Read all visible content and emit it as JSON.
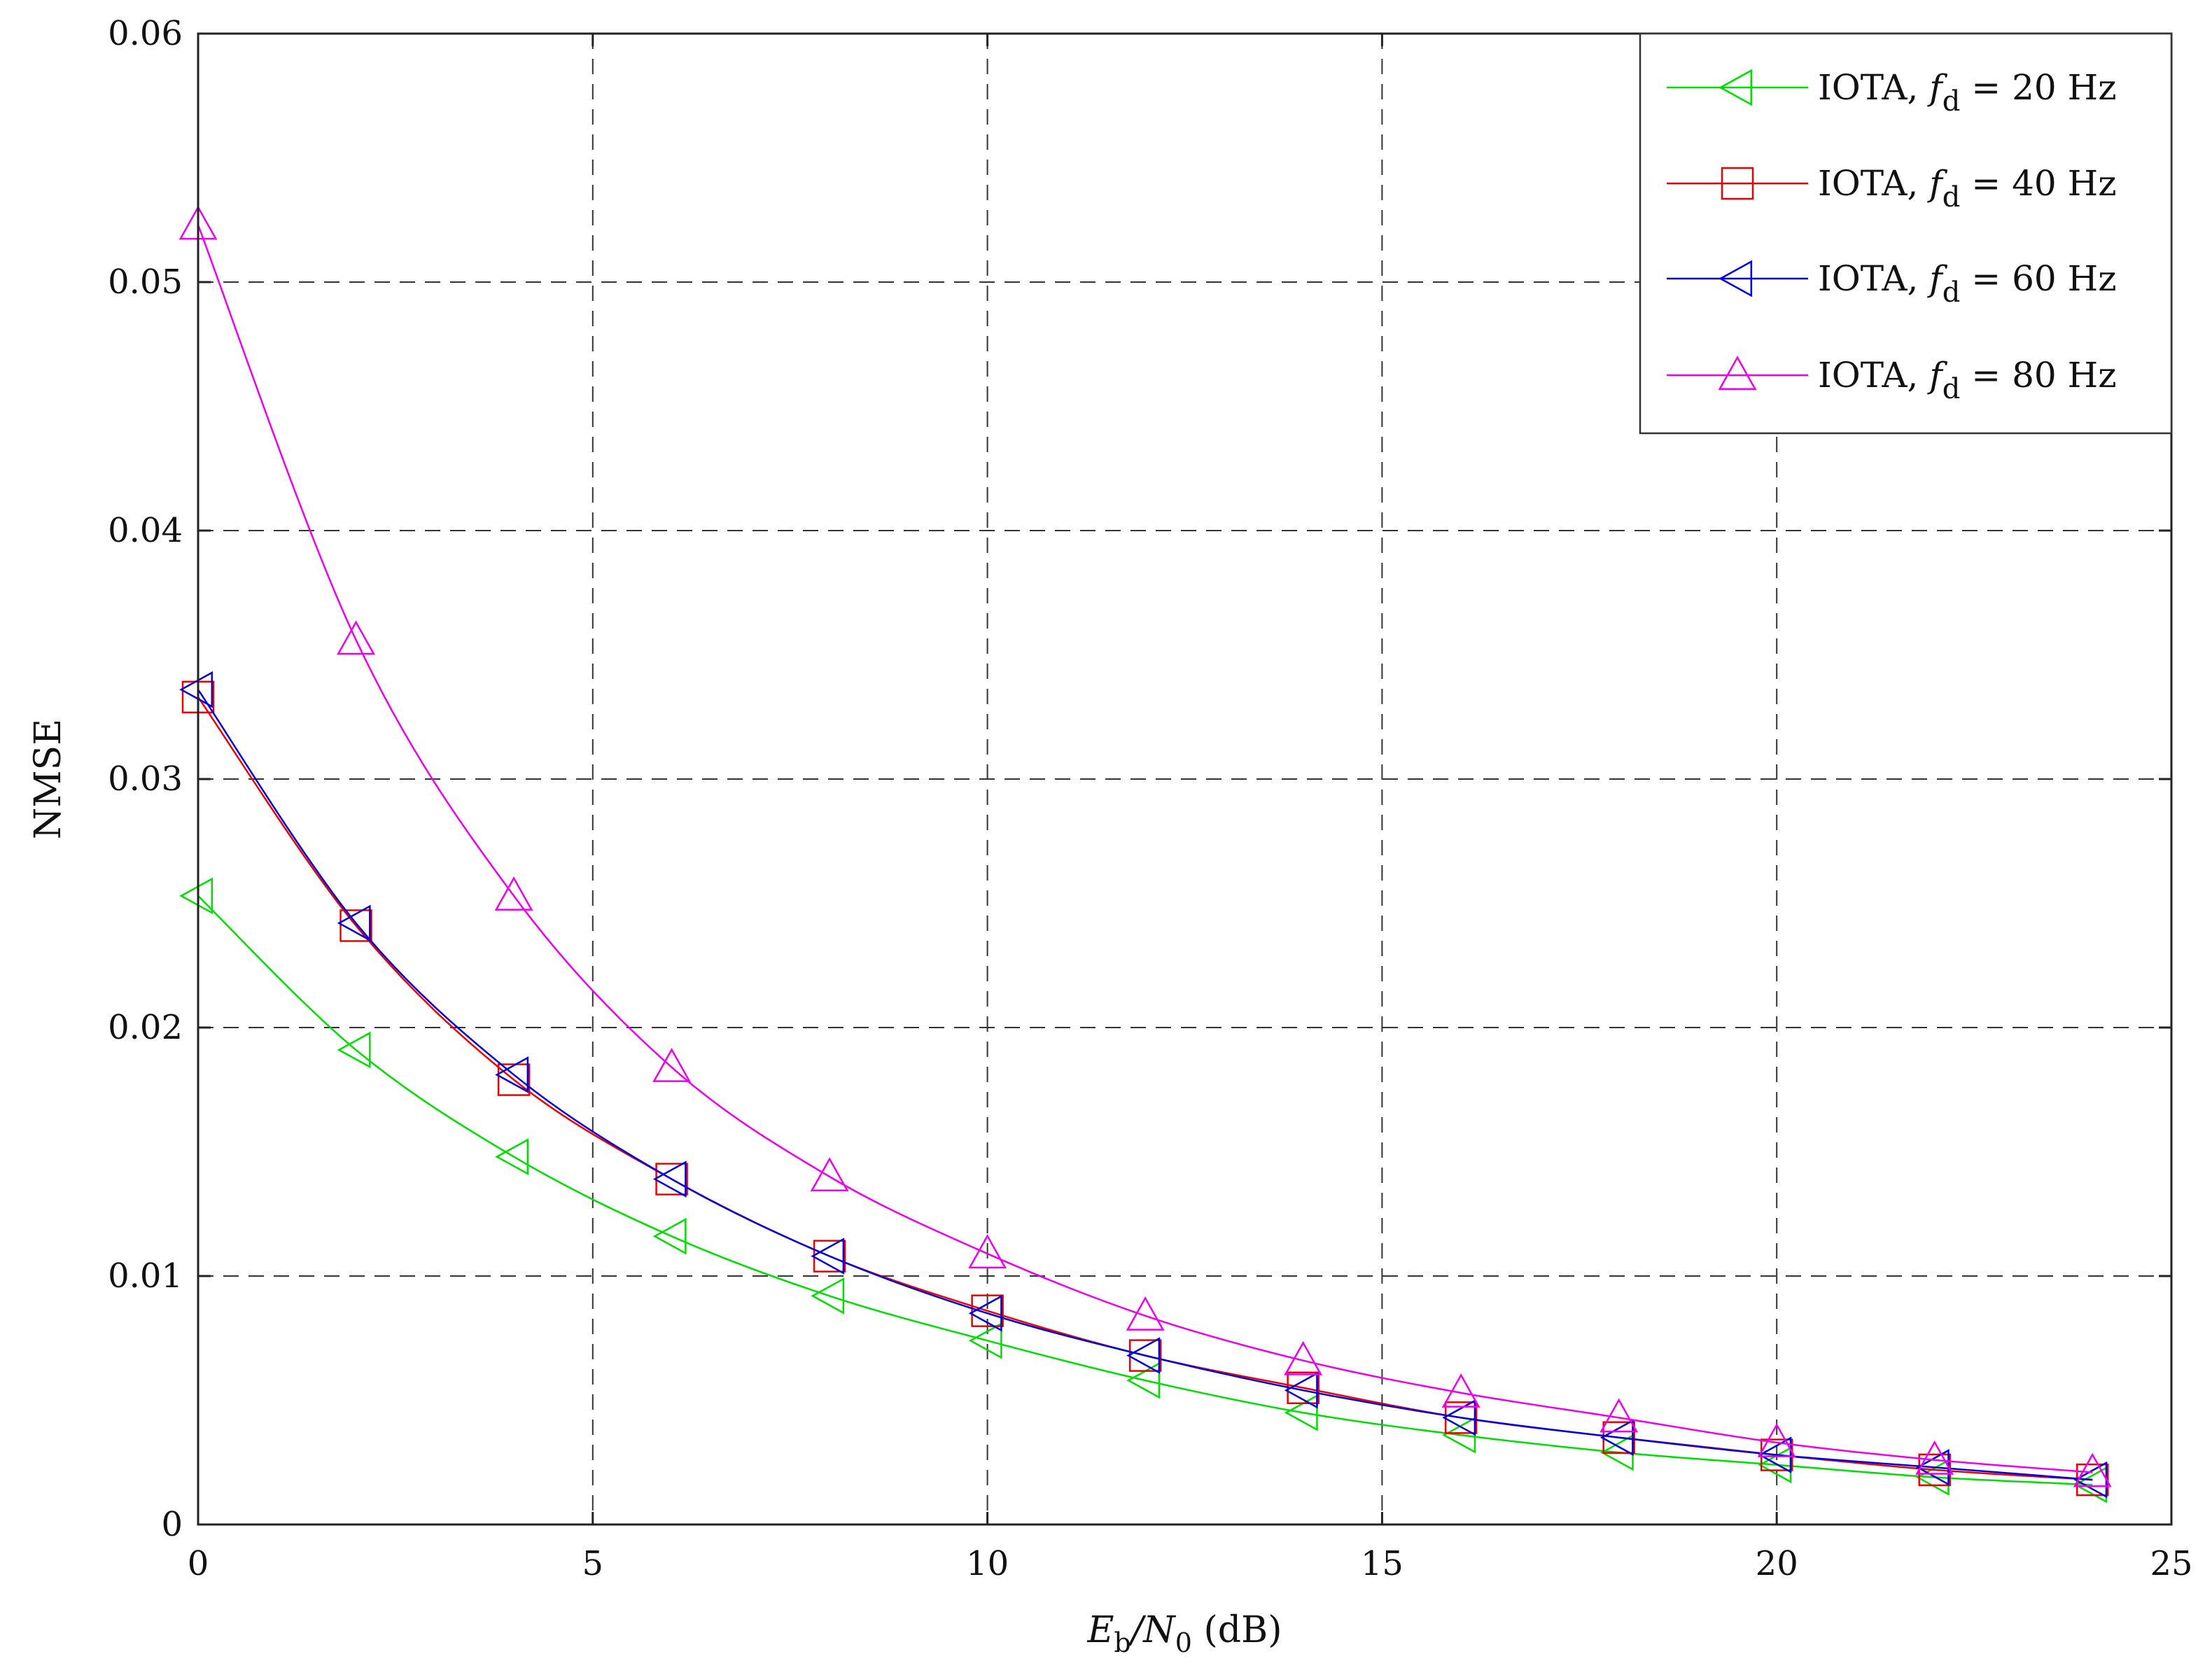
{
  "chart_data": {
    "type": "line",
    "title": "",
    "xlabel": {
      "main": "E",
      "sub1": "b",
      "mid": "/N",
      "sub2": "0",
      "tail": " (dB)"
    },
    "ylabel": "NMSE",
    "xlim": [
      0,
      25
    ],
    "ylim": [
      0,
      0.06
    ],
    "xticks": [
      0,
      5,
      10,
      15,
      20,
      25
    ],
    "xtick_labels": [
      "0",
      "5",
      "10",
      "15",
      "20",
      "25"
    ],
    "yticks": [
      0,
      0.01,
      0.02,
      0.03,
      0.04,
      0.05,
      0.06
    ],
    "ytick_labels": [
      "0",
      "0.01",
      "0.02",
      "0.03",
      "0.04",
      "0.05",
      "0.06"
    ],
    "grid": true,
    "legend_position": "top-right",
    "x": [
      0,
      2,
      4,
      6,
      8,
      10,
      12,
      14,
      16,
      18,
      20,
      22,
      24
    ],
    "series": [
      {
        "name": "IOTA, f_d = 20 Hz",
        "legend": {
          "prefix": "IOTA, ",
          "symbol": "f",
          "sub": "d",
          "suffix": " = 20 Hz"
        },
        "color": "#00dd00",
        "marker": "triangle-left",
        "values": [
          0.0253,
          0.0191,
          0.0148,
          0.0116,
          0.0092,
          0.0074,
          0.0058,
          0.0045,
          0.0036,
          0.0029,
          0.0024,
          0.0019,
          0.0016
        ]
      },
      {
        "name": "IOTA, f_d = 40 Hz",
        "legend": {
          "prefix": "IOTA, ",
          "symbol": "f",
          "sub": "d",
          "suffix": " = 40 Hz"
        },
        "color": "#ee0000",
        "marker": "square",
        "values": [
          0.0333,
          0.0241,
          0.0179,
          0.0139,
          0.0108,
          0.0086,
          0.0068,
          0.0055,
          0.0043,
          0.0035,
          0.0028,
          0.0022,
          0.0018
        ]
      },
      {
        "name": "IOTA, f_d = 60 Hz",
        "legend": {
          "prefix": "IOTA, ",
          "symbol": "f",
          "sub": "d",
          "suffix": " = 60 Hz"
        },
        "color": "#0000dd",
        "marker": "triangle-left",
        "values": [
          0.0336,
          0.0242,
          0.0181,
          0.0139,
          0.0108,
          0.0085,
          0.0068,
          0.0054,
          0.0043,
          0.0035,
          0.0028,
          0.0023,
          0.0018
        ]
      },
      {
        "name": "IOTA, f_d = 80 Hz",
        "legend": {
          "prefix": "IOTA, ",
          "symbol": "f",
          "sub": "d",
          "suffix": " = 80 Hz"
        },
        "color": "#ee00ee",
        "marker": "triangle-up",
        "values": [
          0.0523,
          0.0356,
          0.0253,
          0.0184,
          0.014,
          0.0109,
          0.0084,
          0.0066,
          0.0053,
          0.0043,
          0.0033,
          0.0026,
          0.0021
        ]
      }
    ]
  }
}
